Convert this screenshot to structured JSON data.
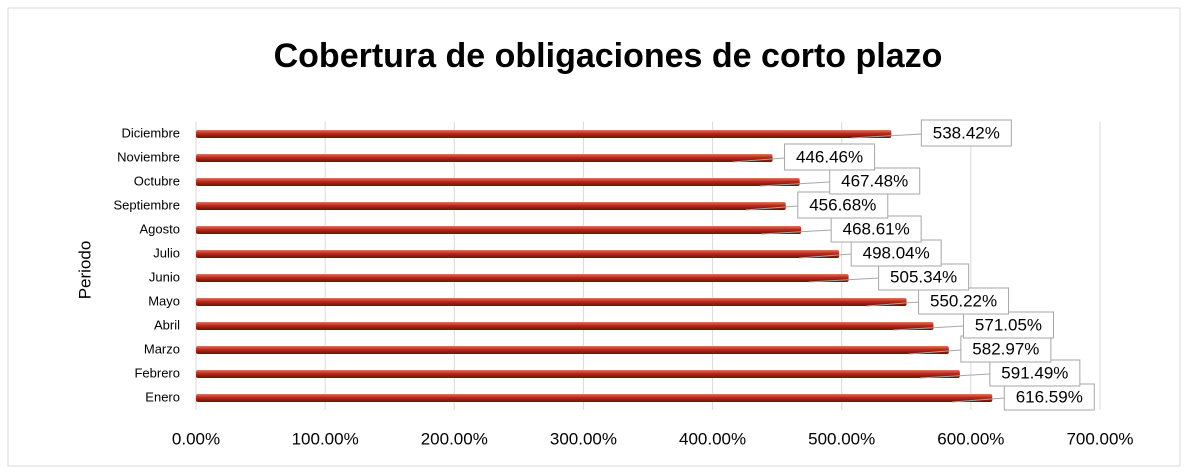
{
  "chart_data": {
    "type": "bar",
    "orientation": "horizontal",
    "title": "Cobertura de obligaciones de corto plazo",
    "y_label": "Periodo",
    "categories": [
      "Enero",
      "Febrero",
      "Marzo",
      "Abril",
      "Mayo",
      "Junio",
      "Julio",
      "Agosto",
      "Septiembre",
      "Octubre",
      "Noviembre",
      "Diciembre"
    ],
    "values": [
      616.59,
      591.49,
      582.97,
      571.05,
      550.22,
      505.34,
      498.04,
      468.61,
      456.68,
      467.48,
      446.46,
      538.42
    ],
    "value_labels": [
      "616.59%",
      "591.49%",
      "582.97%",
      "571.05%",
      "550.22%",
      "505.34%",
      "498.04%",
      "468.61%",
      "456.68%",
      "467.48%",
      "446.46%",
      "538.42%"
    ],
    "color": "#b52a16",
    "xlim": [
      0,
      700
    ],
    "xticks": [
      {
        "value": 0,
        "label": "0.00%"
      },
      {
        "value": 100,
        "label": "100.00%"
      },
      {
        "value": 200,
        "label": "200.00%"
      },
      {
        "value": 300,
        "label": "300.00%"
      },
      {
        "value": 400,
        "label": "400.00%"
      },
      {
        "value": 500,
        "label": "500.00%"
      },
      {
        "value": 600,
        "label": "600.00%"
      },
      {
        "value": 700,
        "label": "700.00%"
      }
    ],
    "grid": true
  }
}
